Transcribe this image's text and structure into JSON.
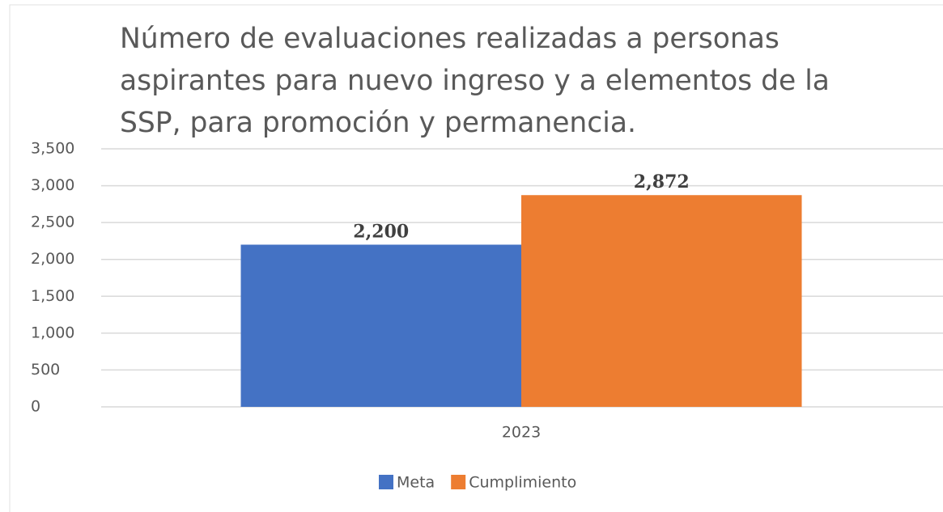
{
  "chart_data": {
    "type": "bar",
    "title": "Número de evaluaciones realizadas a personas aspirantes para nuevo ingreso y a elementos de la SSP, para promoción y permanencia.",
    "categories": [
      "2023"
    ],
    "series": [
      {
        "name": "Meta",
        "color": "#4472c4",
        "values": [
          2200
        ],
        "value_labels": [
          "2,200"
        ]
      },
      {
        "name": "Cumplimiento",
        "color": "#ed7d31",
        "values": [
          2872
        ],
        "value_labels": [
          "2,872"
        ]
      }
    ],
    "ylim": [
      0,
      3500
    ],
    "yticks": [
      0,
      500,
      {
        "value": 1000,
        "label": "1,000"
      },
      {
        "value": 1500,
        "label": "1,500"
      },
      {
        "value": 2000,
        "label": "2,000"
      },
      {
        "value": 2500,
        "label": "2,500"
      },
      {
        "value": 3000,
        "label": "3,000"
      },
      {
        "value": 3500,
        "label": "3,500"
      }
    ],
    "grid": true,
    "legend": "bottom"
  }
}
